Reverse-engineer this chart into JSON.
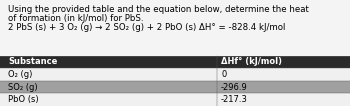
{
  "text_line1": "Using the provided table and the equation below, determine the heat",
  "text_line2": "of formation (in kJ/mol) for PbS.",
  "text_line3": "2 PbS (s) + 3 O₂ (g) → 2 SO₂ (g) + 2 PbO (s) ΔH° = -828.4 kJ/mol",
  "table_header": [
    "Substance",
    "ΔHf° (kJ/mol)"
  ],
  "table_rows": [
    [
      "O₂ (g)",
      "0"
    ],
    [
      "SO₂ (g)",
      "-296.9"
    ],
    [
      "PbO (s)",
      "-217.3"
    ]
  ],
  "header_bg": "#2a2a2a",
  "header_fg": "#ffffff",
  "row_bg_white": "#f0f0f0",
  "row_bg_gray": "#a0a0a0",
  "border_color": "#555555",
  "text_color": "#000000",
  "bg_color": "#f4f4f4",
  "font_size": 6.2,
  "table_font_size": 6.0,
  "col_split": 0.62
}
